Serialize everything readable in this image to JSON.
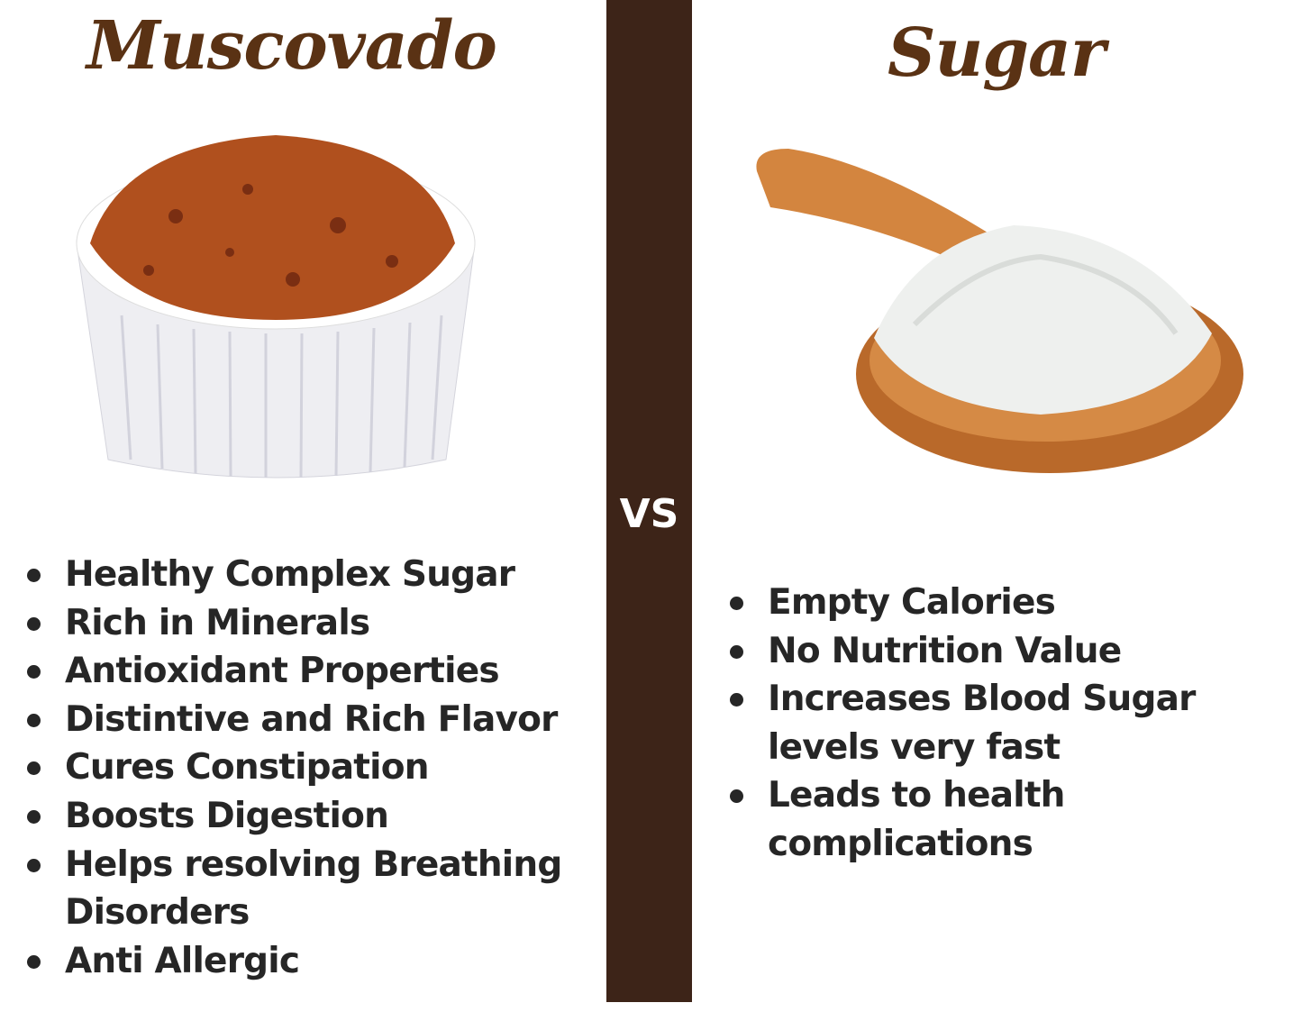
{
  "left": {
    "title": "Muscovado",
    "image": "muscovado-bowl",
    "items": [
      "Healthy Complex Sugar",
      "Rich in Minerals",
      "Antioxidant Properties",
      "Distintive and Rich Flavor",
      "Cures Constipation",
      "Boosts Digestion",
      "Helps resolving Breathing Disorders",
      "Anti Allergic"
    ]
  },
  "divider": {
    "label": "VS",
    "color": "#3d2418"
  },
  "right": {
    "title": "Sugar",
    "image": "sugar-spoon",
    "items": [
      "Empty Calories",
      "No Nutrition Value",
      "Increases Blood Sugar levels very fast",
      "Leads to health complications"
    ]
  },
  "colors": {
    "title": "#5a3214",
    "text": "#262626"
  }
}
